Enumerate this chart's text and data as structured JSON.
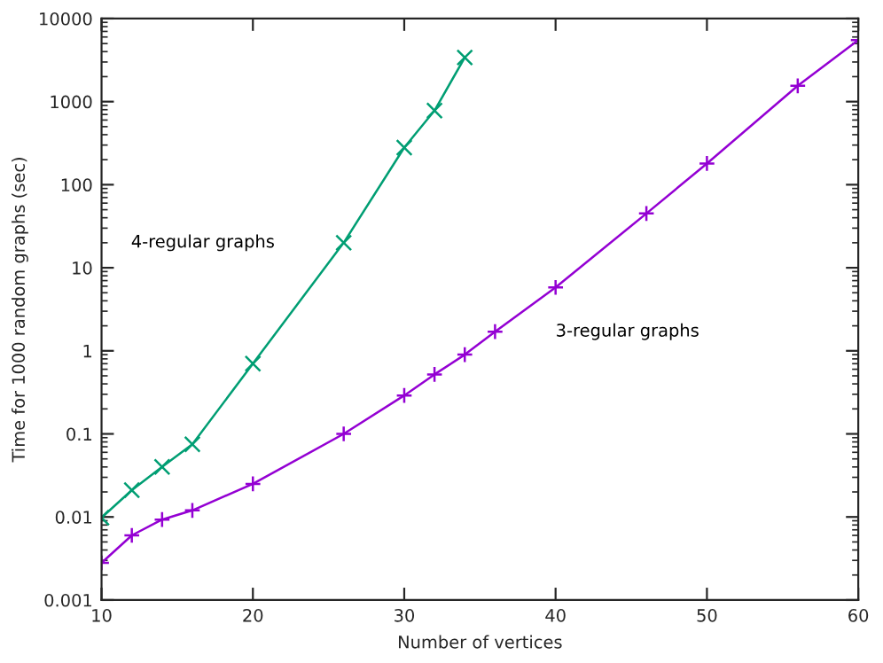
{
  "chart_data": {
    "type": "line",
    "xlabel": "Number of vertices",
    "ylabel": "Time for 1000 random graphs (sec)",
    "log": "y",
    "xlim": [
      10,
      60
    ],
    "xticks": [
      10,
      20,
      30,
      40,
      50,
      60
    ],
    "ylim": [
      0.001,
      10000
    ],
    "yticks": [
      0.001,
      0.01,
      0.1,
      1,
      10,
      100,
      1000,
      10000
    ],
    "grid": false,
    "legend": false,
    "line_style": "solid",
    "series": [
      {
        "name": "4-regular graphs",
        "color": "#009e73",
        "marker": "cross",
        "x": [
          10,
          12,
          14,
          16,
          20,
          26,
          30,
          32,
          34
        ],
        "values": [
          0.0098,
          0.021,
          0.04,
          0.075,
          0.7,
          20,
          280,
          780,
          3400
        ]
      },
      {
        "name": "3-regular graphs",
        "color": "#9400d3",
        "marker": "plus",
        "x": [
          10,
          12,
          14,
          16,
          20,
          26,
          30,
          32,
          34,
          36,
          40,
          46,
          50,
          56,
          60
        ],
        "values": [
          0.0028,
          0.006,
          0.0093,
          0.012,
          0.025,
          0.1,
          0.29,
          0.52,
          0.9,
          1.7,
          5.8,
          45,
          180,
          1550,
          5500
        ]
      }
    ]
  }
}
